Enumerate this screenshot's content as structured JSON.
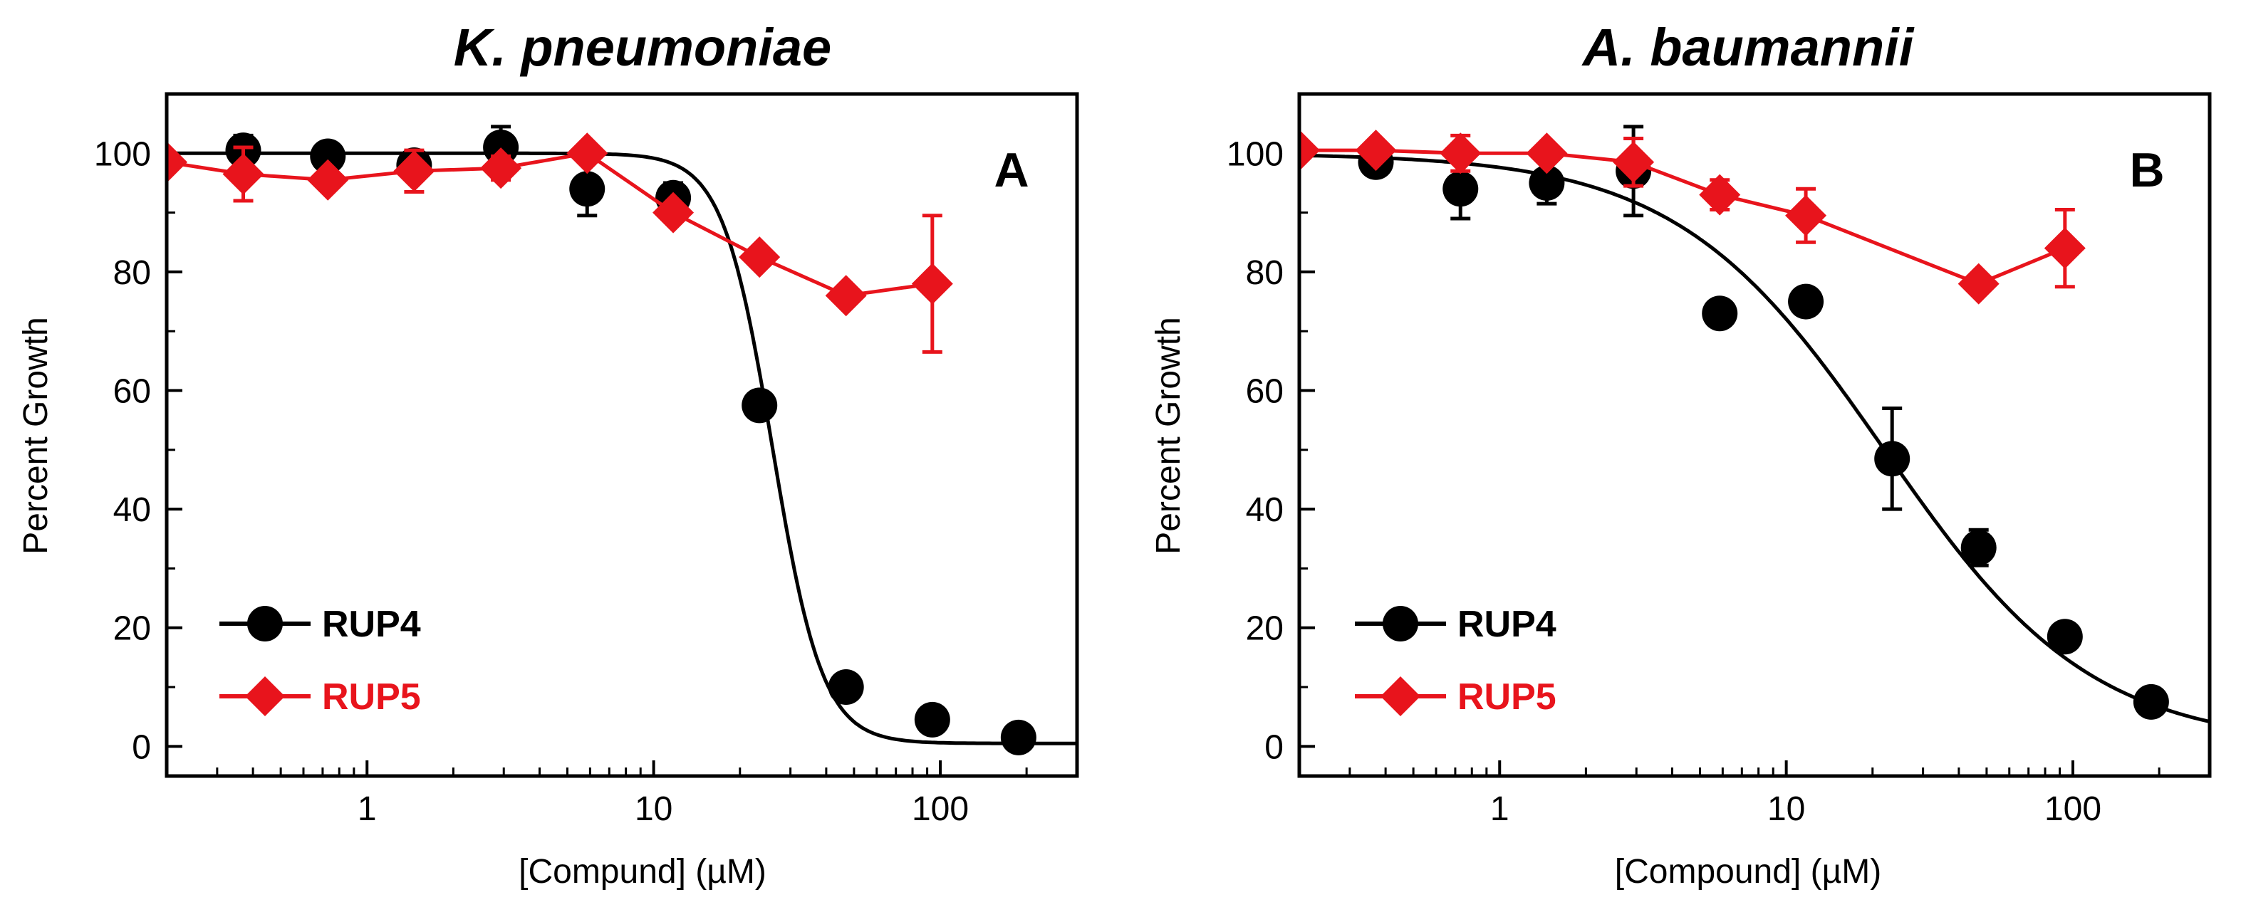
{
  "colors": {
    "rup4": "#000000",
    "rup5": "#e8141c",
    "axis": "#000000"
  },
  "chart_data": [
    {
      "type": "scatter",
      "title": "K. pneumoniae",
      "panel_label": "A",
      "xlabel": "[Compund] (µM)",
      "ylabel": "Percent Growth",
      "xscale": "log",
      "xlim": [
        0.2,
        300
      ],
      "ylim": [
        -5,
        110
      ],
      "xticks": [
        1,
        10,
        100
      ],
      "xtick_labels": [
        "1",
        "10",
        "100"
      ],
      "yticks": [
        0,
        20,
        40,
        60,
        80,
        100
      ],
      "ytick_labels": [
        "0",
        "20",
        "40",
        "60",
        "80",
        "100"
      ],
      "grid": false,
      "legend_position": "bottom-left",
      "series": [
        {
          "name": "RUP4",
          "marker": "circle",
          "line": "fit",
          "x": [
            0.37,
            0.73,
            1.46,
            2.93,
            5.86,
            11.7,
            23.4,
            46.9,
            93.8,
            187.5
          ],
          "y": [
            100.5,
            99.5,
            98,
            101,
            94,
            92.5,
            57.5,
            10,
            4.5,
            1.5
          ],
          "err": [
            2.5,
            1.5,
            1.5,
            3.5,
            4.5,
            2.5,
            0,
            0,
            0,
            0
          ],
          "fit": {
            "model": "four-parameter logistic",
            "top": 100,
            "bottom": 0.5,
            "ec50": 26,
            "hill": 5
          }
        },
        {
          "name": "RUP5",
          "marker": "diamond",
          "line": "connected",
          "x": [
            0.2,
            0.37,
            0.73,
            1.46,
            2.93,
            5.86,
            11.7,
            23.4,
            46.9,
            93.8
          ],
          "y": [
            98.5,
            96.5,
            95.5,
            97,
            97.5,
            100,
            90,
            82.5,
            76,
            78
          ],
          "err": [
            null,
            4.5,
            0,
            3.5,
            2,
            0,
            0,
            0,
            0,
            11.5
          ]
        }
      ]
    },
    {
      "type": "scatter",
      "title": "A. baumannii",
      "panel_label": "B",
      "xlabel": "[Compound] (µM)",
      "ylabel": "Percent Growth",
      "xscale": "log",
      "xlim": [
        0.2,
        300
      ],
      "ylim": [
        -5,
        110
      ],
      "xticks": [
        1,
        10,
        100
      ],
      "xtick_labels": [
        "1",
        "10",
        "100"
      ],
      "yticks": [
        0,
        20,
        40,
        60,
        80,
        100
      ],
      "ytick_labels": [
        "0",
        "20",
        "40",
        "60",
        "80",
        "100"
      ],
      "grid": false,
      "legend_position": "bottom-left",
      "series": [
        {
          "name": "RUP4",
          "marker": "circle",
          "line": "fit",
          "x": [
            0.37,
            0.73,
            1.46,
            2.93,
            5.86,
            11.7,
            23.4,
            46.9,
            93.8,
            187.5
          ],
          "y": [
            98.5,
            94,
            95,
            97,
            73,
            75,
            48.5,
            33.5,
            18.5,
            7.5
          ],
          "err": [
            0,
            5,
            3.5,
            7.5,
            0,
            0,
            8.5,
            3,
            0,
            0
          ],
          "fit": {
            "model": "four-parameter logistic",
            "top": 100,
            "bottom": 0,
            "ec50": 22,
            "hill": 1.2
          }
        },
        {
          "name": "RUP5",
          "marker": "diamond",
          "line": "connected",
          "x": [
            0.2,
            0.37,
            0.73,
            1.46,
            2.93,
            5.86,
            11.7,
            46.9,
            93.8
          ],
          "y": [
            100.5,
            100.5,
            100,
            100,
            98.5,
            93,
            89.5,
            78,
            84
          ],
          "err": [
            null,
            0,
            3,
            0,
            4,
            2.5,
            4.5,
            0,
            6.5
          ]
        }
      ]
    }
  ]
}
